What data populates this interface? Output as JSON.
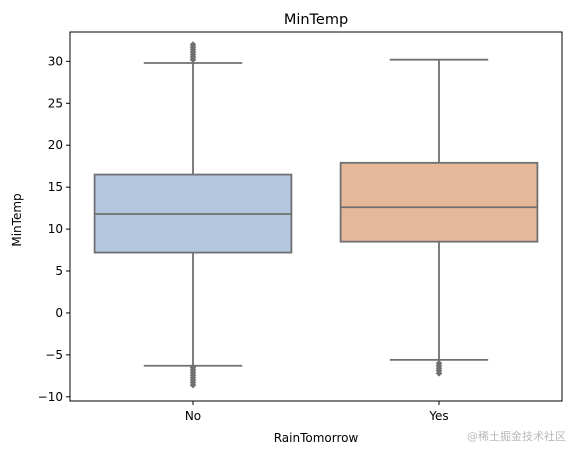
{
  "chart_data": {
    "type": "box",
    "title": "MinTemp",
    "xlabel": "RainTomorrow",
    "ylabel": "MinTemp",
    "categories": [
      "No",
      "Yes"
    ],
    "ylim": [
      -10.5,
      33.5
    ],
    "yticks": [
      -10,
      -5,
      0,
      5,
      10,
      15,
      20,
      25,
      30
    ],
    "ytick_labels": [
      "−10",
      "−5",
      "0",
      "5",
      "10",
      "15",
      "20",
      "25",
      "30"
    ],
    "grid": false,
    "legend": "none",
    "boxes": [
      {
        "category": "No",
        "whisker_low": -6.3,
        "q1": 7.2,
        "median": 11.8,
        "q3": 16.5,
        "whisker_high": 29.8,
        "outliers_low": [
          -6.5,
          -6.8,
          -7.1,
          -7.4,
          -7.7,
          -8.0,
          -8.3,
          -8.6
        ],
        "outliers_high": [
          30.2,
          30.5,
          30.8,
          31.1,
          31.4,
          31.7,
          32.0
        ],
        "color": "#b3c8df"
      },
      {
        "category": "Yes",
        "whisker_low": -5.6,
        "q1": 8.5,
        "median": 12.6,
        "q3": 17.9,
        "whisker_high": 30.2,
        "outliers_low": [
          -6.0,
          -6.3,
          -6.6,
          -6.9,
          -7.2
        ],
        "outliers_high": [],
        "color": "#e6b89a"
      }
    ],
    "line_color": "#707070"
  },
  "watermark": "@稀土掘金技术社区"
}
